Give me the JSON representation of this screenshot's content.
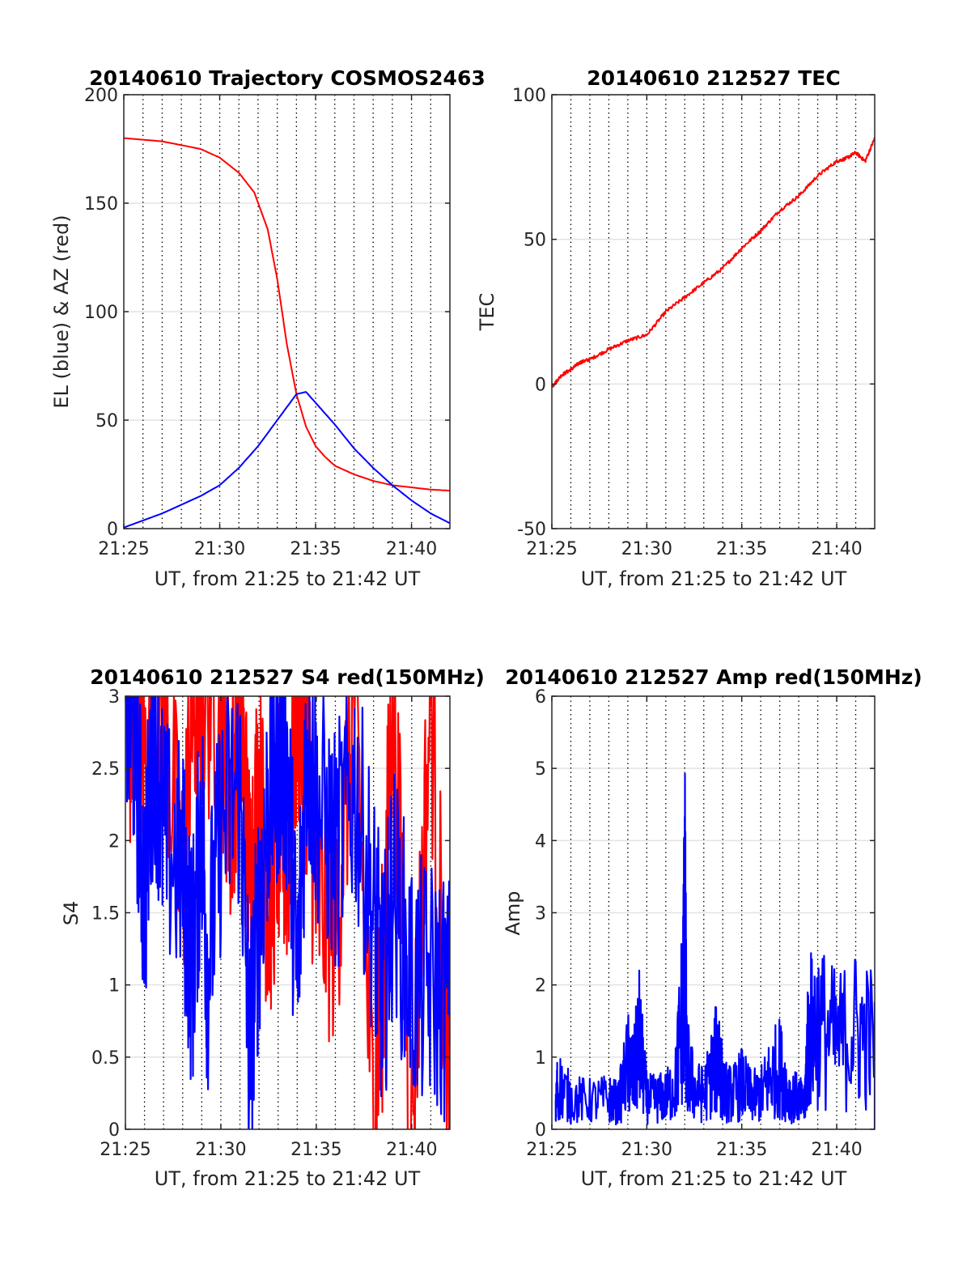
{
  "chart_data": [
    {
      "type": "line",
      "title": "20140610 Trajectory COSMOS2463",
      "xlabel": "UT, from 21:25 to 21:42 UT",
      "ylabel": "EL (blue) & AZ (red)",
      "xlim_minutes": [
        0,
        17
      ],
      "ylim": [
        0,
        200
      ],
      "x_ticks": [
        "21:25",
        "21:30",
        "21:35",
        "21:40"
      ],
      "y_ticks": [
        "0",
        "50",
        "100",
        "150",
        "200"
      ],
      "grid": "on",
      "series": [
        {
          "color": "#ff0000",
          "x_minutes": [
            0,
            2,
            4,
            5,
            6,
            6.8,
            7.5,
            8,
            8.5,
            9,
            9.5,
            10,
            10.5,
            11,
            12,
            13,
            14,
            15,
            16,
            17
          ],
          "values": [
            180,
            178.5,
            175,
            171,
            164,
            155,
            138,
            115,
            85,
            62,
            47,
            38,
            33,
            29,
            25,
            22,
            20,
            19,
            18,
            17.5
          ]
        },
        {
          "color": "#0000ff",
          "x_minutes": [
            0,
            2,
            4,
            5,
            6,
            7,
            8,
            8.5,
            9,
            9.5,
            10,
            11,
            12,
            13,
            14,
            15,
            16,
            17
          ],
          "values": [
            0.5,
            7,
            15,
            20,
            28,
            38,
            50,
            56,
            62,
            63,
            58,
            48,
            37,
            28,
            20,
            13,
            7,
            2.5
          ]
        }
      ]
    },
    {
      "type": "line",
      "title": "20140610 212527 TEC",
      "xlabel": "UT, from 21:25 to 21:42 UT",
      "ylabel": "TEC",
      "xlim_minutes": [
        0,
        17
      ],
      "ylim": [
        -50,
        100
      ],
      "x_ticks": [
        "21:25",
        "21:30",
        "21:35",
        "21:40"
      ],
      "y_ticks": [
        "-50",
        "0",
        "50",
        "100"
      ],
      "grid": "on",
      "series": [
        {
          "color": "#ff0000",
          "x_minutes": [
            0,
            0.5,
            1,
            1.5,
            2,
            3,
            4,
            5,
            6,
            7,
            8,
            9,
            10,
            11,
            12,
            13,
            14,
            15,
            15.5,
            16,
            16.5,
            17
          ],
          "values": [
            -1,
            3,
            5,
            7.5,
            8.5,
            12,
            15,
            17,
            25,
            30,
            35,
            40,
            47,
            53,
            60,
            65,
            72,
            77,
            78,
            80,
            77,
            85
          ]
        }
      ]
    },
    {
      "type": "line",
      "title": "20140610 212527 S4 red(150MHz)",
      "xlabel": "UT, from 21:25 to 21:42 UT",
      "ylabel": "S4",
      "xlim_minutes": [
        0,
        17
      ],
      "ylim": [
        0,
        3
      ],
      "x_ticks": [
        "21:25",
        "21:30",
        "21:35",
        "21:40"
      ],
      "y_ticks": [
        "0",
        "0.5",
        "1",
        "1.5",
        "2",
        "2.5",
        "3"
      ],
      "grid": "on",
      "series": [
        {
          "color": "#ff0000",
          "x_minutes": [
            0.2,
            0.5,
            1,
            2,
            3,
            3.5,
            4,
            5,
            5.5,
            6,
            6.5,
            7,
            7.5,
            8,
            8.5,
            9,
            9.5,
            10,
            11,
            12,
            13,
            13.5,
            14,
            15,
            16,
            17
          ],
          "values": [
            2.7,
            3,
            2.6,
            3,
            1.6,
            2.9,
            3,
            3,
            2.2,
            3,
            1.7,
            2.4,
            1.5,
            2.1,
            1.9,
            3,
            2.6,
            1.6,
            1.4,
            3,
            0,
            1.1,
            3,
            0,
            3,
            0
          ]
        },
        {
          "color": "#0000ff",
          "x_minutes": [
            0,
            0.5,
            1,
            1.5,
            2,
            3,
            3.5,
            4,
            4.3,
            5,
            6,
            6.5,
            7,
            7.5,
            8,
            8.5,
            9,
            9.5,
            10,
            11,
            12,
            13,
            13.5,
            14,
            15,
            16,
            17
          ],
          "values": [
            3,
            2.7,
            1.6,
            2.8,
            2,
            1.8,
            1.1,
            2.2,
            1.1,
            2.1,
            2.4,
            0.5,
            1.5,
            2.3,
            2.6,
            2.5,
            1,
            2.7,
            2.3,
            1.9,
            2.4,
            1.5,
            0.9,
            1.7,
            1,
            1,
            0.9
          ]
        }
      ]
    },
    {
      "type": "line",
      "title": "20140610 212527 Amp red(150MHz)",
      "xlabel": "UT, from 21:25 to 21:42 UT",
      "ylabel": "Amp",
      "xlim_minutes": [
        0,
        17
      ],
      "ylim": [
        0,
        6
      ],
      "x_ticks": [
        "21:25",
        "21:30",
        "21:35",
        "21:40"
      ],
      "y_ticks": [
        "0",
        "1",
        "2",
        "3",
        "4",
        "5",
        "6"
      ],
      "grid": "on",
      "series": [
        {
          "color": "#0000ff",
          "x_minutes": [
            0.2,
            0.3,
            1,
            2,
            3,
            3.5,
            4,
            4.3,
            4.6,
            5,
            5.5,
            6,
            6.5,
            6.9,
            7,
            7.1,
            7.5,
            8,
            8.5,
            8.8,
            9,
            9.5,
            10,
            10.5,
            11,
            11.5,
            12,
            12.5,
            13,
            13.3,
            13.5,
            14,
            15,
            16,
            17
          ],
          "values": [
            0.4,
            1.05,
            0.7,
            0.65,
            0.7,
            0.6,
            1.5,
            1.2,
            2.05,
            0.7,
            0.7,
            0.75,
            1.0,
            2.9,
            4.85,
            1.5,
            0.9,
            0.8,
            1.4,
            1.8,
            0.9,
            0.8,
            1.05,
            0.75,
            0.8,
            1.2,
            1.45,
            0.8,
            0.7,
            0.55,
            2.2,
            2.45,
            2.0,
            2.3,
            2.05
          ]
        }
      ]
    }
  ]
}
